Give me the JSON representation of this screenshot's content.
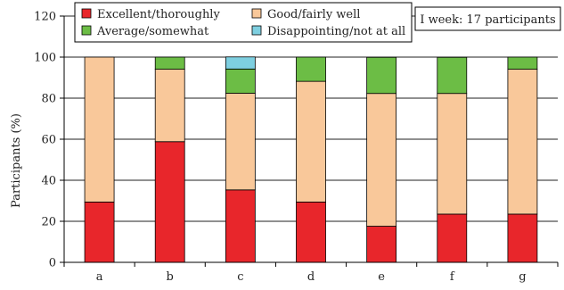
{
  "chart_data": {
    "type": "bar",
    "stacked": true,
    "categories": [
      "a",
      "b",
      "c",
      "d",
      "e",
      "f",
      "g"
    ],
    "series": [
      {
        "name": "Excellent/thoroughly",
        "color": "#e8262b",
        "values": [
          29.4,
          58.8,
          35.3,
          29.4,
          17.6,
          23.5,
          23.5
        ]
      },
      {
        "name": "Good/fairly well",
        "color": "#f9c89a",
        "values": [
          70.6,
          35.3,
          47.1,
          58.8,
          64.7,
          58.8,
          70.6
        ]
      },
      {
        "name": "Average/somewhat",
        "color": "#6cbd45",
        "values": [
          0,
          5.9,
          11.8,
          11.8,
          17.6,
          17.6,
          5.9
        ]
      },
      {
        "name": "Disappointing/not at all",
        "color": "#7ecfe0",
        "values": [
          0,
          0,
          5.9,
          0,
          0,
          0,
          0
        ]
      }
    ],
    "ylabel": "Participants (%)",
    "ylim": [
      0,
      120
    ],
    "yticks": [
      0,
      20,
      40,
      60,
      80,
      100,
      120
    ],
    "grid": true,
    "legend_position": "top",
    "annotation": "I week: 17 participants"
  }
}
